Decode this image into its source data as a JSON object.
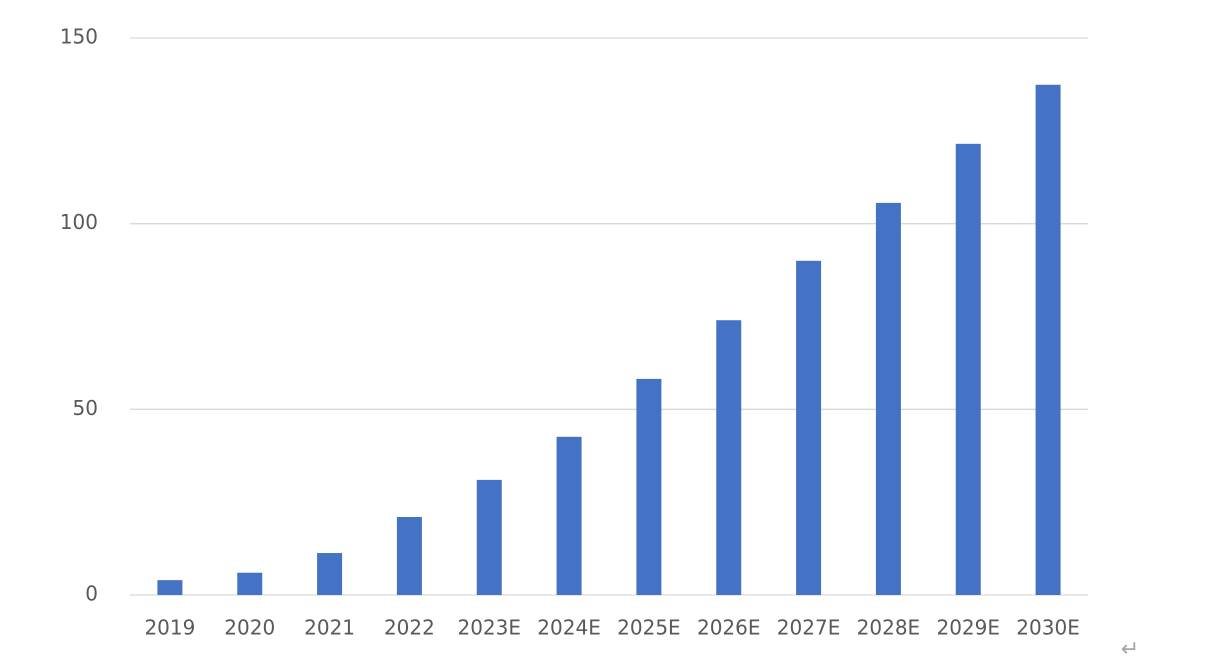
{
  "chart_data": {
    "type": "bar",
    "categories": [
      "2019",
      "2020",
      "2021",
      "2022",
      "2023E",
      "2024E",
      "2025E",
      "2026E",
      "2027E",
      "2028E",
      "2029E",
      "2030E"
    ],
    "values": [
      4,
      6,
      11.3,
      21,
      31,
      42.6,
      58.2,
      74,
      90,
      105.6,
      121.5,
      137.4
    ],
    "color": "#4472c4",
    "ylim": [
      0,
      150
    ],
    "yticks": [
      0,
      50,
      100,
      150
    ],
    "grid": true,
    "annotation": "↵"
  }
}
